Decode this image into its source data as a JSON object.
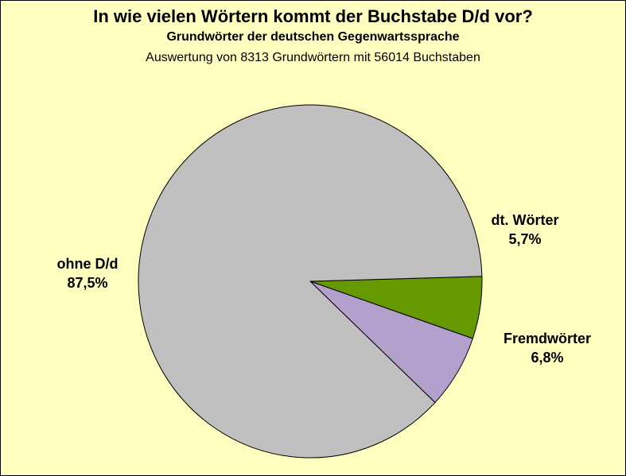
{
  "chart_data": {
    "type": "pie",
    "title": "In wie vielen Wörtern kommt der Buchstabe D/d vor?",
    "subtitle": "Grundwörter der deutschen Gegenwartssprache",
    "note": "Auswertung von 8313 Grundwörtern mit 56014 Buchstaben",
    "slices": [
      {
        "name": "dt. Wörter",
        "value": 5.7,
        "display": "5,7%",
        "color": "#669900"
      },
      {
        "name": "Fremdwörter",
        "value": 6.8,
        "display": "6,8%",
        "color": "#b4a0cc"
      },
      {
        "name": "ohne D/d",
        "value": 87.5,
        "display": "87,5%",
        "color": "#c0c0c0"
      }
    ],
    "background": "#ffffc0"
  }
}
